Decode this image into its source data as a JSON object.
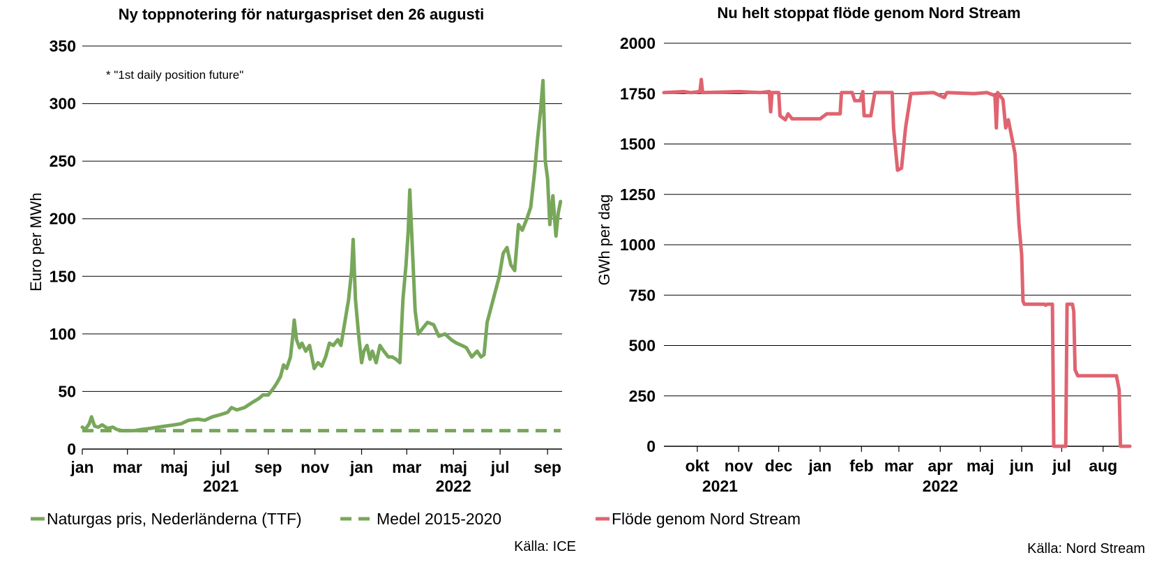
{
  "chart_data": [
    {
      "type": "line",
      "title": "Ny toppnotering för naturgaspriset den 26 augusti",
      "annotation": "* \"1st daily position future\"",
      "ylabel": "Euro per MWh",
      "xlabel": "",
      "ylim": [
        0,
        350
      ],
      "yticks": [
        0,
        50,
        100,
        150,
        200,
        250,
        300,
        350
      ],
      "x_range": [
        "2021-01-01",
        "2022-09-20"
      ],
      "x_ticks": [
        {
          "date": "2021-01-01",
          "label": "jan"
        },
        {
          "date": "2021-03-01",
          "label": "mar"
        },
        {
          "date": "2021-05-01",
          "label": "maj"
        },
        {
          "date": "2021-07-01",
          "label": "jul"
        },
        {
          "date": "2021-09-01",
          "label": "sep"
        },
        {
          "date": "2021-11-01",
          "label": "nov"
        },
        {
          "date": "2022-01-01",
          "label": "jan"
        },
        {
          "date": "2022-03-01",
          "label": "mar"
        },
        {
          "date": "2022-05-01",
          "label": "maj"
        },
        {
          "date": "2022-07-01",
          "label": "jul"
        },
        {
          "date": "2022-09-01",
          "label": "sep"
        }
      ],
      "year_labels": [
        {
          "date": "2021-07-01",
          "label": "2021"
        },
        {
          "date": "2022-05-01",
          "label": "2022"
        }
      ],
      "grid": true,
      "legend_position": "bottom",
      "series": [
        {
          "name": "Naturgas pris, Nederländerna (TTF)",
          "color": "#78a75a",
          "style": "solid",
          "points": [
            [
              "2021-01-01",
              19
            ],
            [
              "2021-01-05",
              17
            ],
            [
              "2021-01-10",
              22
            ],
            [
              "2021-01-13",
              28
            ],
            [
              "2021-01-17",
              20
            ],
            [
              "2021-01-22",
              19
            ],
            [
              "2021-01-27",
              21
            ],
            [
              "2021-02-03",
              18
            ],
            [
              "2021-02-10",
              19
            ],
            [
              "2021-02-15",
              17
            ],
            [
              "2021-02-22",
              16
            ],
            [
              "2021-03-01",
              16
            ],
            [
              "2021-03-10",
              16
            ],
            [
              "2021-03-20",
              17
            ],
            [
              "2021-03-31",
              18
            ],
            [
              "2021-04-10",
              19
            ],
            [
              "2021-04-20",
              20
            ],
            [
              "2021-05-01",
              21
            ],
            [
              "2021-05-10",
              22
            ],
            [
              "2021-05-20",
              25
            ],
            [
              "2021-06-01",
              26
            ],
            [
              "2021-06-10",
              25
            ],
            [
              "2021-06-20",
              28
            ],
            [
              "2021-07-01",
              30
            ],
            [
              "2021-07-10",
              32
            ],
            [
              "2021-07-15",
              36
            ],
            [
              "2021-07-22",
              34
            ],
            [
              "2021-08-01",
              36
            ],
            [
              "2021-08-10",
              40
            ],
            [
              "2021-08-20",
              44
            ],
            [
              "2021-08-25",
              47
            ],
            [
              "2021-09-01",
              47
            ],
            [
              "2021-09-07",
              52
            ],
            [
              "2021-09-12",
              57
            ],
            [
              "2021-09-17",
              63
            ],
            [
              "2021-09-21",
              73
            ],
            [
              "2021-09-25",
              70
            ],
            [
              "2021-09-30",
              80
            ],
            [
              "2021-10-03",
              98
            ],
            [
              "2021-10-05",
              112
            ],
            [
              "2021-10-08",
              95
            ],
            [
              "2021-10-12",
              88
            ],
            [
              "2021-10-15",
              92
            ],
            [
              "2021-10-20",
              85
            ],
            [
              "2021-10-25",
              90
            ],
            [
              "2021-10-31",
              70
            ],
            [
              "2021-11-05",
              75
            ],
            [
              "2021-11-10",
              72
            ],
            [
              "2021-11-15",
              80
            ],
            [
              "2021-11-20",
              92
            ],
            [
              "2021-11-25",
              90
            ],
            [
              "2021-12-01",
              95
            ],
            [
              "2021-12-05",
              90
            ],
            [
              "2021-12-10",
              110
            ],
            [
              "2021-12-15",
              130
            ],
            [
              "2021-12-19",
              155
            ],
            [
              "2021-12-21",
              182
            ],
            [
              "2021-12-24",
              130
            ],
            [
              "2021-12-28",
              100
            ],
            [
              "2022-01-01",
              75
            ],
            [
              "2022-01-04",
              85
            ],
            [
              "2022-01-08",
              90
            ],
            [
              "2022-01-12",
              78
            ],
            [
              "2022-01-15",
              85
            ],
            [
              "2022-01-20",
              75
            ],
            [
              "2022-01-25",
              90
            ],
            [
              "2022-01-30",
              85
            ],
            [
              "2022-02-05",
              80
            ],
            [
              "2022-02-10",
              80
            ],
            [
              "2022-02-15",
              78
            ],
            [
              "2022-02-20",
              75
            ],
            [
              "2022-02-24",
              130
            ],
            [
              "2022-02-28",
              160
            ],
            [
              "2022-03-03",
              190
            ],
            [
              "2022-03-05",
              225
            ],
            [
              "2022-03-08",
              180
            ],
            [
              "2022-03-12",
              120
            ],
            [
              "2022-03-16",
              100
            ],
            [
              "2022-03-22",
              105
            ],
            [
              "2022-03-28",
              110
            ],
            [
              "2022-04-05",
              108
            ],
            [
              "2022-04-12",
              98
            ],
            [
              "2022-04-20",
              100
            ],
            [
              "2022-04-28",
              95
            ],
            [
              "2022-05-05",
              92
            ],
            [
              "2022-05-12",
              90
            ],
            [
              "2022-05-18",
              88
            ],
            [
              "2022-05-25",
              80
            ],
            [
              "2022-06-01",
              85
            ],
            [
              "2022-06-06",
              80
            ],
            [
              "2022-06-10",
              82
            ],
            [
              "2022-06-14",
              110
            ],
            [
              "2022-06-18",
              120
            ],
            [
              "2022-06-24",
              135
            ],
            [
              "2022-06-30",
              150
            ],
            [
              "2022-07-05",
              170
            ],
            [
              "2022-07-10",
              175
            ],
            [
              "2022-07-15",
              160
            ],
            [
              "2022-07-20",
              155
            ],
            [
              "2022-07-25",
              195
            ],
            [
              "2022-07-30",
              190
            ],
            [
              "2022-08-05",
              200
            ],
            [
              "2022-08-10",
              210
            ],
            [
              "2022-08-15",
              240
            ],
            [
              "2022-08-19",
              270
            ],
            [
              "2022-08-23",
              295
            ],
            [
              "2022-08-26",
              320
            ],
            [
              "2022-08-29",
              250
            ],
            [
              "2022-09-01",
              235
            ],
            [
              "2022-09-04",
              195
            ],
            [
              "2022-09-08",
              220
            ],
            [
              "2022-09-12",
              185
            ],
            [
              "2022-09-15",
              205
            ],
            [
              "2022-09-18",
              215
            ]
          ]
        },
        {
          "name": "Medel 2015-2020",
          "color": "#78a75a",
          "style": "dashed",
          "points": [
            [
              "2021-01-01",
              16
            ],
            [
              "2022-09-18",
              16
            ]
          ]
        }
      ],
      "source": "Källa: ICE"
    },
    {
      "type": "line",
      "title": "Nu helt stoppat flöde genom Nord Stream",
      "ylabel": "GWh per dag",
      "xlabel": "",
      "ylim": [
        0,
        2000
      ],
      "yticks": [
        0,
        250,
        500,
        750,
        1000,
        1250,
        1500,
        1750,
        2000
      ],
      "x_range": [
        "2021-09-20",
        "2022-09-05"
      ],
      "x_ticks": [
        {
          "date": "2021-10-15",
          "label": "okt"
        },
        {
          "date": "2021-11-15",
          "label": "nov"
        },
        {
          "date": "2021-12-15",
          "label": "dec"
        },
        {
          "date": "2022-01-15",
          "label": "jan"
        },
        {
          "date": "2022-02-15",
          "label": "feb"
        },
        {
          "date": "2022-03-15",
          "label": "mar"
        },
        {
          "date": "2022-04-15",
          "label": "apr"
        },
        {
          "date": "2022-05-15",
          "label": "maj"
        },
        {
          "date": "2022-06-15",
          "label": "jun"
        },
        {
          "date": "2022-07-15",
          "label": "jul"
        },
        {
          "date": "2022-08-15",
          "label": "aug"
        }
      ],
      "year_labels": [
        {
          "date": "2021-11-01",
          "label": "2021"
        },
        {
          "date": "2022-04-15",
          "label": "2022"
        }
      ],
      "grid": true,
      "legend_position": "bottom",
      "series": [
        {
          "name": "Flöde genom Nord Stream",
          "color": "#df6470",
          "style": "solid",
          "points": [
            [
              "2021-09-20",
              1755
            ],
            [
              "2021-10-05",
              1760
            ],
            [
              "2021-10-10",
              1755
            ],
            [
              "2021-10-17",
              1760
            ],
            [
              "2021-10-18",
              1820
            ],
            [
              "2021-10-19",
              1755
            ],
            [
              "2021-11-15",
              1760
            ],
            [
              "2021-12-01",
              1755
            ],
            [
              "2021-12-08",
              1760
            ],
            [
              "2021-12-09",
              1660
            ],
            [
              "2021-12-10",
              1755
            ],
            [
              "2021-12-15",
              1755
            ],
            [
              "2021-12-16",
              1640
            ],
            [
              "2021-12-20",
              1620
            ],
            [
              "2021-12-22",
              1650
            ],
            [
              "2021-12-25",
              1625
            ],
            [
              "2022-01-15",
              1625
            ],
            [
              "2022-01-20",
              1650
            ],
            [
              "2022-01-30",
              1650
            ],
            [
              "2022-01-31",
              1755
            ],
            [
              "2022-02-08",
              1755
            ],
            [
              "2022-02-10",
              1715
            ],
            [
              "2022-02-14",
              1715
            ],
            [
              "2022-02-16",
              1760
            ],
            [
              "2022-02-17",
              1640
            ],
            [
              "2022-02-22",
              1640
            ],
            [
              "2022-02-25",
              1755
            ],
            [
              "2022-03-10",
              1755
            ],
            [
              "2022-03-11",
              1580
            ],
            [
              "2022-03-14",
              1370
            ],
            [
              "2022-03-17",
              1380
            ],
            [
              "2022-03-20",
              1580
            ],
            [
              "2022-03-24",
              1750
            ],
            [
              "2022-04-10",
              1755
            ],
            [
              "2022-04-18",
              1730
            ],
            [
              "2022-04-20",
              1755
            ],
            [
              "2022-05-10",
              1750
            ],
            [
              "2022-05-20",
              1755
            ],
            [
              "2022-05-26",
              1740
            ],
            [
              "2022-05-27",
              1580
            ],
            [
              "2022-05-28",
              1755
            ],
            [
              "2022-06-01",
              1720
            ],
            [
              "2022-06-03",
              1580
            ],
            [
              "2022-06-05",
              1620
            ],
            [
              "2022-06-08",
              1520
            ],
            [
              "2022-06-10",
              1450
            ],
            [
              "2022-06-13",
              1100
            ],
            [
              "2022-06-15",
              950
            ],
            [
              "2022-06-16",
              720
            ],
            [
              "2022-06-17",
              705
            ],
            [
              "2022-07-02",
              705
            ],
            [
              "2022-07-03",
              700
            ],
            [
              "2022-07-04",
              705
            ],
            [
              "2022-07-08",
              705
            ],
            [
              "2022-07-09",
              0
            ],
            [
              "2022-07-17",
              0
            ],
            [
              "2022-07-18",
              0
            ],
            [
              "2022-07-19",
              705
            ],
            [
              "2022-07-23",
              705
            ],
            [
              "2022-07-24",
              670
            ],
            [
              "2022-07-25",
              380
            ],
            [
              "2022-07-27",
              350
            ],
            [
              "2022-08-10",
              350
            ],
            [
              "2022-08-25",
              350
            ],
            [
              "2022-08-27",
              280
            ],
            [
              "2022-08-28",
              0
            ],
            [
              "2022-09-04",
              0
            ]
          ]
        }
      ],
      "source": "Källa: Nord Stream"
    }
  ]
}
